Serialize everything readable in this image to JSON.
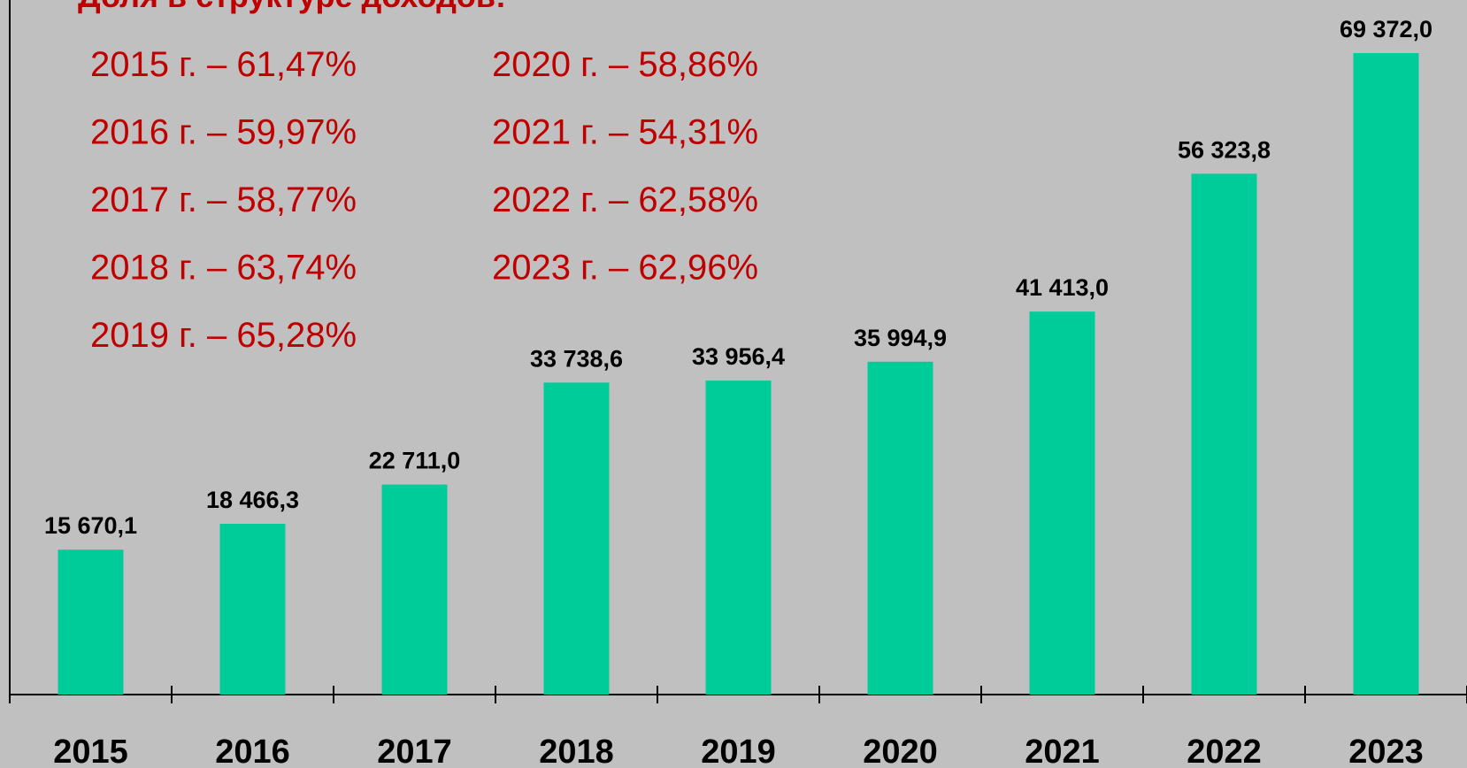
{
  "chart_data": {
    "type": "bar",
    "title": "Доля в структуре доходов:",
    "annotations": [
      "2015 г. – 61,47%",
      "2016 г. – 59,97%",
      "2017 г. – 58,77%",
      "2018 г. – 63,74%",
      "2019 г. – 65,28%",
      "2020 г. – 58,86%",
      "2021 г. – 54,31%",
      "2022 г. – 62,58%",
      "2023 г. – 62,96%"
    ],
    "categories": [
      "2015",
      "2016",
      "2017",
      "2018",
      "2019",
      "2020",
      "2021",
      "2022",
      "2023"
    ],
    "values": [
      15670.1,
      18466.3,
      22711.0,
      33738.6,
      33956.4,
      35994.9,
      41413.0,
      56323.8,
      69372.0
    ],
    "value_labels": [
      "15 670,1",
      "18 466,3",
      "22 711,0",
      "33 738,6",
      "33 956,4",
      "35 994,9",
      "41 413,0",
      "56 323,8",
      "69 372,0"
    ],
    "color": "#00cc99"
  }
}
